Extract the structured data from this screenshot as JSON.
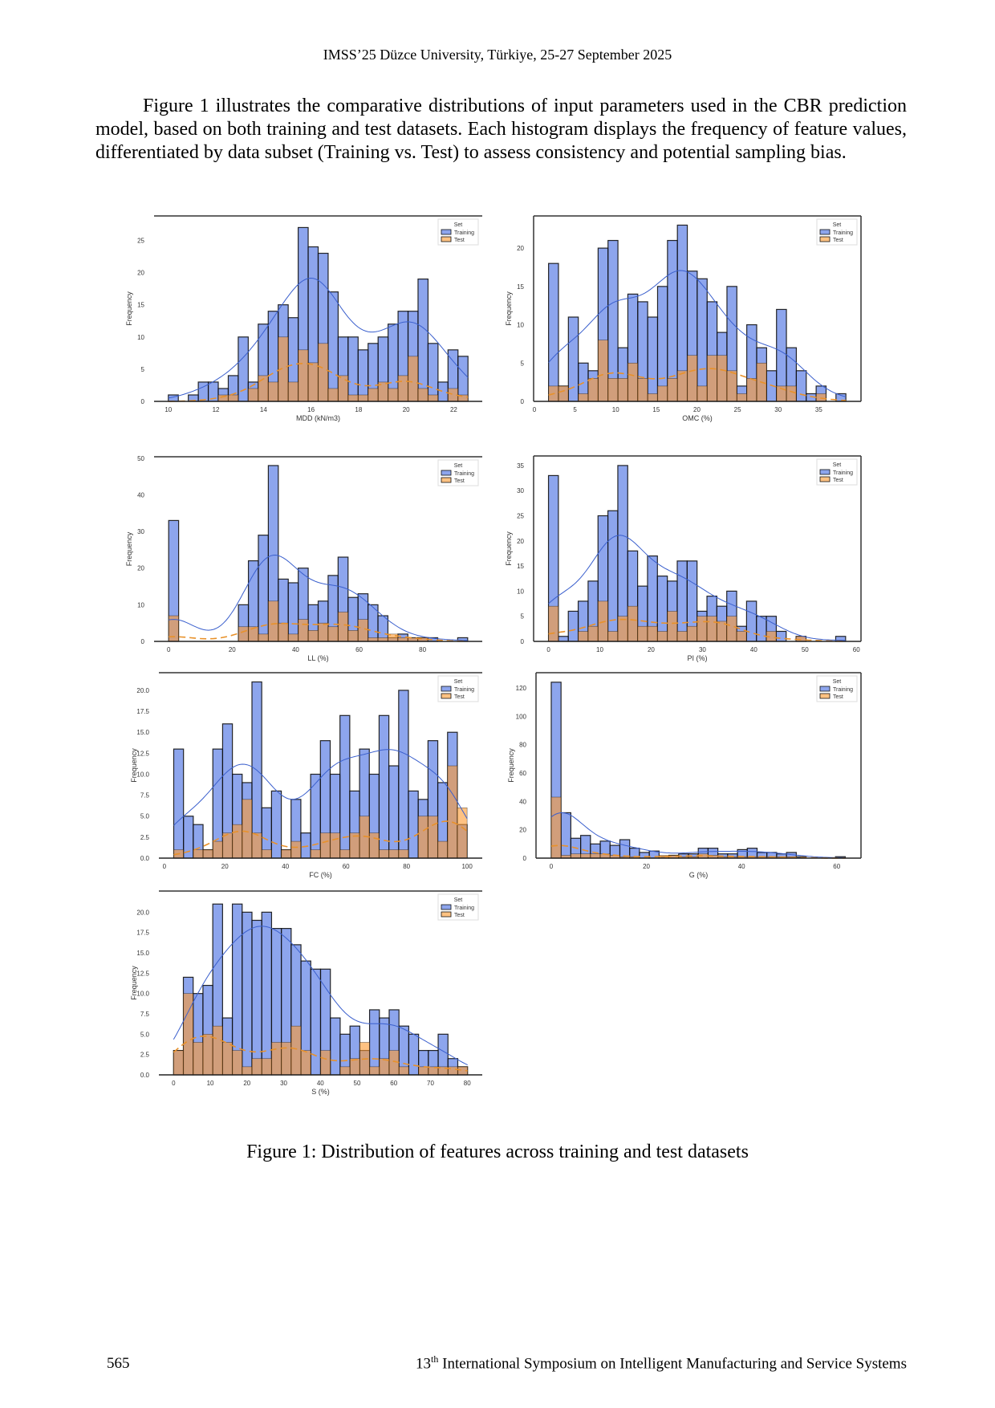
{
  "header": {
    "text": "IMSS’25 Düzce University, Türkiye, 25-27 September 2025"
  },
  "paragraph": {
    "text": "Figure 1 illustrates the comparative distributions of input parameters used in the CBR prediction model, based on both training and test datasets. Each histogram displays the frequency of feature values, differentiated by data subset (Training vs. Test) to assess consistency and potential sampling bias."
  },
  "caption": {
    "text": "Figure 1: Distribution of features across training and test datasets"
  },
  "footer": {
    "page_number": "565",
    "conference_prefix": "13",
    "conference_sup": "th",
    "conference_rest": " International Symposium on Intelligent Manufacturing and Service Systems"
  },
  "colors": {
    "training": "#4169e1",
    "test": "#ff9a2e",
    "training_kde": "#3a5fcd",
    "test_kde": "#e8912a"
  },
  "chart_data": [
    {
      "type": "bar",
      "xlabel": "MDD (kN/m3)",
      "ylabel": "Frequency",
      "legend_title": "Set",
      "legend": [
        "Training",
        "Test"
      ],
      "legend_position": "top-right",
      "xlim": [
        9.4,
        23.2
      ],
      "ylim": [
        0,
        28.8
      ],
      "xticks": [
        10,
        12,
        14,
        16,
        18,
        20,
        22
      ],
      "yticks": [
        0,
        5,
        10,
        15,
        20,
        25
      ],
      "bin_start": 10.0,
      "bin_width": 0.42,
      "training": [
        1,
        0,
        1,
        3,
        3,
        2,
        4,
        10,
        3,
        12,
        14,
        15,
        13,
        27,
        24,
        23,
        17,
        10,
        10,
        8,
        9,
        10,
        12,
        14,
        14,
        19,
        9,
        3,
        8,
        7
      ],
      "test": [
        0,
        0,
        0,
        0,
        0,
        1,
        1,
        0,
        2,
        4,
        3,
        10,
        3,
        8,
        6,
        9,
        2,
        4,
        1,
        1,
        2,
        3,
        2,
        4,
        7,
        2,
        1,
        0,
        2,
        1
      ],
      "left_spine": false
    },
    {
      "type": "bar",
      "xlabel": "OMC (%)",
      "ylabel": "Frequency",
      "legend_title": "Set",
      "legend": [
        "Training",
        "Test"
      ],
      "legend_position": "top-right",
      "xlim": [
        -0.1,
        40.2
      ],
      "ylim": [
        0,
        24.2
      ],
      "xticks": [
        0,
        5,
        10,
        15,
        20,
        25,
        30,
        35
      ],
      "yticks": [
        0,
        5,
        10,
        15,
        20
      ],
      "bin_start": 1.74,
      "bin_width": 1.22,
      "training": [
        18,
        2,
        11,
        5,
        4,
        20,
        21,
        7,
        14,
        13,
        11,
        15,
        21,
        23,
        17,
        16,
        13,
        9,
        15,
        2,
        10,
        7,
        4,
        12,
        7,
        4,
        1,
        2,
        0,
        1
      ],
      "test": [
        2,
        2,
        0,
        1,
        3,
        8,
        3,
        3,
        5,
        3,
        1,
        2,
        3,
        4,
        6,
        2,
        6,
        6,
        4,
        1,
        3,
        5,
        0,
        2,
        2,
        0,
        0,
        1,
        0,
        0
      ],
      "left_spine": true
    },
    {
      "type": "bar",
      "xlabel": "LL (%)",
      "ylabel": "Frequency",
      "legend_title": "Set",
      "legend": [
        "Training",
        "Test"
      ],
      "legend_position": "top-right",
      "xlim": [
        -4.6,
        98.8
      ],
      "ylim": [
        0,
        50.4
      ],
      "xticks": [
        0,
        20,
        40,
        60,
        80
      ],
      "yticks": [
        0,
        10,
        20,
        30,
        40,
        50
      ],
      "bin_start": 0,
      "bin_width": 3.14,
      "training": [
        33,
        0,
        0,
        0,
        0,
        0,
        0,
        10,
        22,
        29,
        48,
        17,
        16,
        20,
        10,
        11,
        18,
        23,
        12,
        13,
        10,
        7,
        1,
        2,
        1,
        1,
        1,
        0,
        0,
        1
      ],
      "test": [
        7,
        0,
        0,
        0,
        0,
        0,
        0,
        4,
        4,
        2,
        11,
        5,
        2,
        6,
        3,
        5,
        4,
        8,
        3,
        6,
        1,
        1,
        2,
        1,
        1,
        1,
        0,
        0,
        0,
        0
      ],
      "left_spine": false
    },
    {
      "type": "bar",
      "xlabel": "PI (%)",
      "ylabel": "Frequency",
      "legend_title": "Set",
      "legend": [
        "Training",
        "Test"
      ],
      "legend_position": "top-right",
      "xlim": [
        -2.9,
        60.9
      ],
      "ylim": [
        0,
        36.9
      ],
      "xticks": [
        0,
        10,
        20,
        30,
        40,
        50,
        60
      ],
      "yticks": [
        0,
        5,
        10,
        15,
        20,
        25,
        30,
        35
      ],
      "bin_start": 0,
      "bin_width": 1.93,
      "training": [
        33,
        1,
        6,
        8,
        12,
        25,
        26,
        35,
        18,
        11,
        17,
        13,
        12,
        16,
        16,
        6,
        9,
        7,
        10,
        3,
        8,
        5,
        5,
        2,
        0,
        1,
        0,
        0,
        0,
        1
      ],
      "test": [
        7,
        0,
        0,
        2,
        3,
        8,
        2,
        5,
        7,
        3,
        3,
        2,
        6,
        2,
        3,
        5,
        5,
        4,
        5,
        2,
        0,
        0,
        2,
        0,
        0,
        1,
        0,
        0,
        0,
        0
      ],
      "left_spine": true
    },
    {
      "type": "bar",
      "xlabel": "FC (%)",
      "ylabel": "Frequency",
      "legend_title": "Set",
      "legend": [
        "Training",
        "Test"
      ],
      "legend_position": "top-right",
      "xlim": [
        -1.8,
        105
      ],
      "ylim": [
        0,
        22.1
      ],
      "xticks": [
        0,
        20,
        40,
        60,
        80,
        100
      ],
      "yticks": [
        0,
        2.5,
        5,
        7.5,
        10,
        12.5,
        15,
        17.5,
        20
      ],
      "bin_start": 3.1,
      "bin_width": 3.23,
      "training": [
        13,
        5,
        4,
        1,
        13,
        16,
        10,
        9,
        21,
        6,
        8,
        1,
        7,
        3,
        10,
        14,
        10,
        17,
        8,
        13,
        10,
        17,
        11,
        20,
        8,
        7,
        14,
        9,
        15,
        4
      ],
      "test": [
        1,
        0,
        1,
        1,
        2,
        3,
        4,
        7,
        3,
        1,
        0,
        1,
        2,
        0,
        1,
        3,
        3,
        1,
        3,
        5,
        3,
        1,
        1,
        1,
        0,
        5,
        5,
        2,
        11,
        6
      ],
      "left_spine": false
    },
    {
      "type": "bar",
      "xlabel": "G (%)",
      "ylabel": "Frequency",
      "legend_title": "Set",
      "legend": [
        "Training",
        "Test"
      ],
      "legend_position": "top-right",
      "xlim": [
        -3.2,
        65.1
      ],
      "ylim": [
        0,
        130.7
      ],
      "xticks": [
        0,
        20,
        40,
        60
      ],
      "yticks": [
        0,
        20,
        40,
        60,
        80,
        100,
        120
      ],
      "bin_start": 0,
      "bin_width": 2.06,
      "training": [
        124,
        32,
        14,
        16,
        10,
        12,
        9,
        13,
        7,
        4,
        5,
        1,
        2,
        3,
        3,
        7,
        7,
        3,
        3,
        6,
        7,
        4,
        4,
        3,
        4,
        1,
        0,
        0,
        0,
        1
      ],
      "test": [
        43,
        2,
        3,
        3,
        3,
        3,
        2,
        1,
        1,
        0,
        0,
        2,
        2,
        1,
        1,
        3,
        2,
        1,
        1,
        1,
        1,
        1,
        1,
        1,
        1,
        0,
        0,
        0,
        0,
        0
      ],
      "left_spine": true
    },
    {
      "type": "bar",
      "xlabel": "S (%)",
      "ylabel": "Frequency",
      "legend_title": "Set",
      "legend": [
        "Training",
        "Test"
      ],
      "legend_position": "top-right",
      "xlim": [
        -4.0,
        84.1
      ],
      "ylim": [
        0,
        22.6
      ],
      "xticks": [
        0,
        10,
        20,
        30,
        40,
        50,
        60,
        70,
        80
      ],
      "yticks": [
        0,
        2.5,
        5,
        7.5,
        10,
        12.5,
        15,
        17.5,
        20
      ],
      "bin_start": 0,
      "bin_width": 2.67,
      "training": [
        3,
        12,
        10,
        11,
        21,
        7,
        21,
        20,
        19,
        20,
        18,
        18,
        16,
        14,
        13,
        13,
        7,
        5,
        6,
        3,
        8,
        7,
        8,
        6,
        5,
        3,
        3,
        5,
        2,
        1
      ],
      "test": [
        3,
        10,
        4,
        5,
        6,
        4,
        3,
        1,
        2,
        2,
        4,
        4,
        6,
        3,
        0,
        3,
        0,
        1,
        2,
        4,
        1,
        2,
        3,
        1,
        0,
        1,
        1,
        1,
        1,
        1
      ],
      "left_spine": false
    }
  ]
}
